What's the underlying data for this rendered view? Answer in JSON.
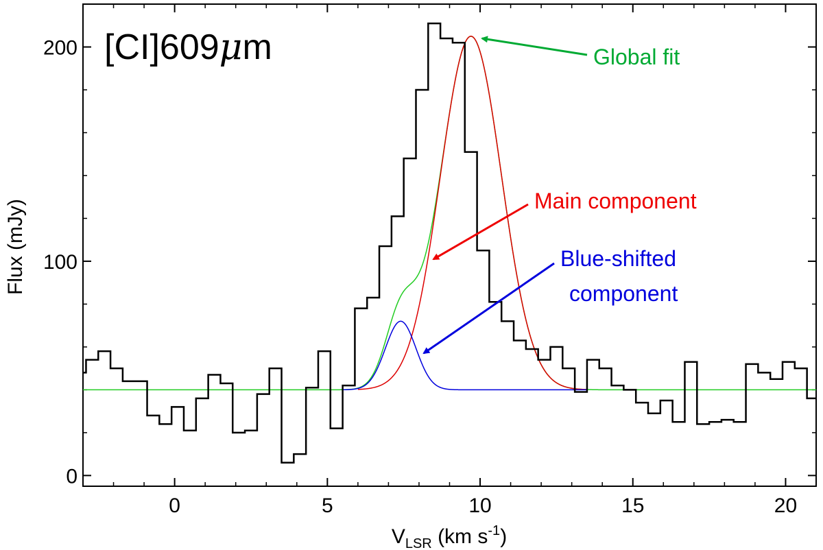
{
  "chart_data": {
    "type": "line",
    "title": "[CI]609μm",
    "title_main": "[CI]609",
    "title_mu": "μ",
    "title_unit": "m",
    "xlabel": "V",
    "xlabel_sub": "LSR",
    "xlabel_unit": " (km s",
    "xlabel_sup": "-1",
    "xlabel_close": ")",
    "ylabel": "Flux (mJy)",
    "xlim": [
      -3,
      21
    ],
    "ylim": [
      -5,
      220
    ],
    "xticks": [
      0,
      5,
      10,
      15,
      20
    ],
    "xtick_labels": [
      "0",
      "5",
      "10",
      "15",
      "20"
    ],
    "yticks": [
      0,
      100,
      200
    ],
    "ytick_labels": [
      "0",
      "100",
      "200"
    ],
    "grid": false,
    "legend": "none",
    "baseline": 40,
    "series": [
      {
        "style": "step",
        "color": "#000000",
        "x": [
          -3.1,
          -2.7,
          -2.3,
          -1.9,
          -1.5,
          -1.1,
          -0.7,
          -0.3,
          0.1,
          0.5,
          0.9,
          1.3,
          1.7,
          2.1,
          2.5,
          2.9,
          3.3,
          3.7,
          4.1,
          4.5,
          4.9,
          5.3,
          5.7,
          6.1,
          6.5,
          6.9,
          7.3,
          7.7,
          8.1,
          8.5,
          8.9,
          9.3,
          9.7,
          10.1,
          10.5,
          10.9,
          11.3,
          11.7,
          12.1,
          12.5,
          12.9,
          13.3,
          13.7,
          14.1,
          14.5,
          14.9,
          15.3,
          15.7,
          16.1,
          16.5,
          16.9,
          17.3,
          17.7,
          18.1,
          18.5,
          18.9,
          19.3,
          19.7,
          20.1,
          20.5,
          20.9
        ],
        "y": [
          48,
          54,
          58,
          50,
          44,
          44,
          28,
          24,
          32,
          21,
          36,
          47,
          43,
          20,
          21,
          38,
          50,
          6,
          10,
          41,
          58,
          22,
          42,
          78,
          83,
          107,
          121,
          148,
          180,
          211,
          204,
          202,
          151,
          105,
          81,
          72,
          63,
          59,
          54,
          60,
          50,
          39,
          54,
          50,
          42,
          40,
          34,
          29,
          35,
          25,
          53,
          24,
          25,
          26,
          25,
          52,
          48,
          45,
          53,
          50,
          36
        ]
      },
      {
        "name": "Global fit",
        "color": "#22cc22",
        "amp1": 165,
        "mu1": 9.7,
        "sigma1": 1.0,
        "amp2": 32,
        "mu2": 7.4,
        "sigma2": 0.5,
        "x_range": [
          -3,
          21
        ]
      },
      {
        "name": "Main component",
        "color": "#dd0000",
        "amp": 165,
        "mu": 9.7,
        "sigma": 1.0,
        "x_range": [
          6,
          13.5
        ]
      },
      {
        "name": "Blue-shifted component",
        "color": "#0000dd",
        "amp": 32,
        "mu": 7.4,
        "sigma": 0.5,
        "x_range": [
          5.5,
          13.5
        ]
      }
    ],
    "annotations": [
      {
        "text": "Global fit",
        "color": "#00aa33"
      },
      {
        "text": "Main component",
        "color": "#ee0000"
      },
      {
        "text": "Blue-shifted",
        "text2": "component",
        "color": "#0000dd"
      }
    ]
  }
}
